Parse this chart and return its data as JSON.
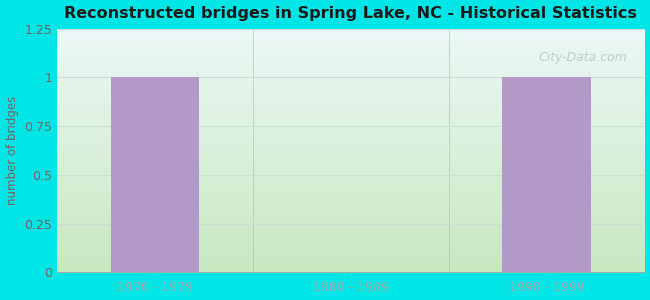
{
  "title": "Reconstructed bridges in Spring Lake, NC - Historical Statistics",
  "categories": [
    "1970 - 1979",
    "1980 - 1989",
    "1990 - 1999"
  ],
  "values": [
    1,
    0,
    1
  ],
  "bar_color": "#b399c8",
  "background_outer": "#00e5e5",
  "background_grad_bottom": "#c8e8c0",
  "background_grad_top": "#e8f5f5",
  "ylabel": "number of bridges",
  "ylabel_color": "#7a6060",
  "tick_color": "#7a6060",
  "title_color": "#1a1a1a",
  "ylim": [
    0,
    1.25
  ],
  "yticks": [
    0,
    0.25,
    0.5,
    0.75,
    1.0,
    1.25
  ],
  "grid_color": "#c8e0d0",
  "watermark": "City-Data.com",
  "bar_width": 0.45,
  "figwidth": 6.5,
  "figheight": 3.0,
  "dpi": 100
}
